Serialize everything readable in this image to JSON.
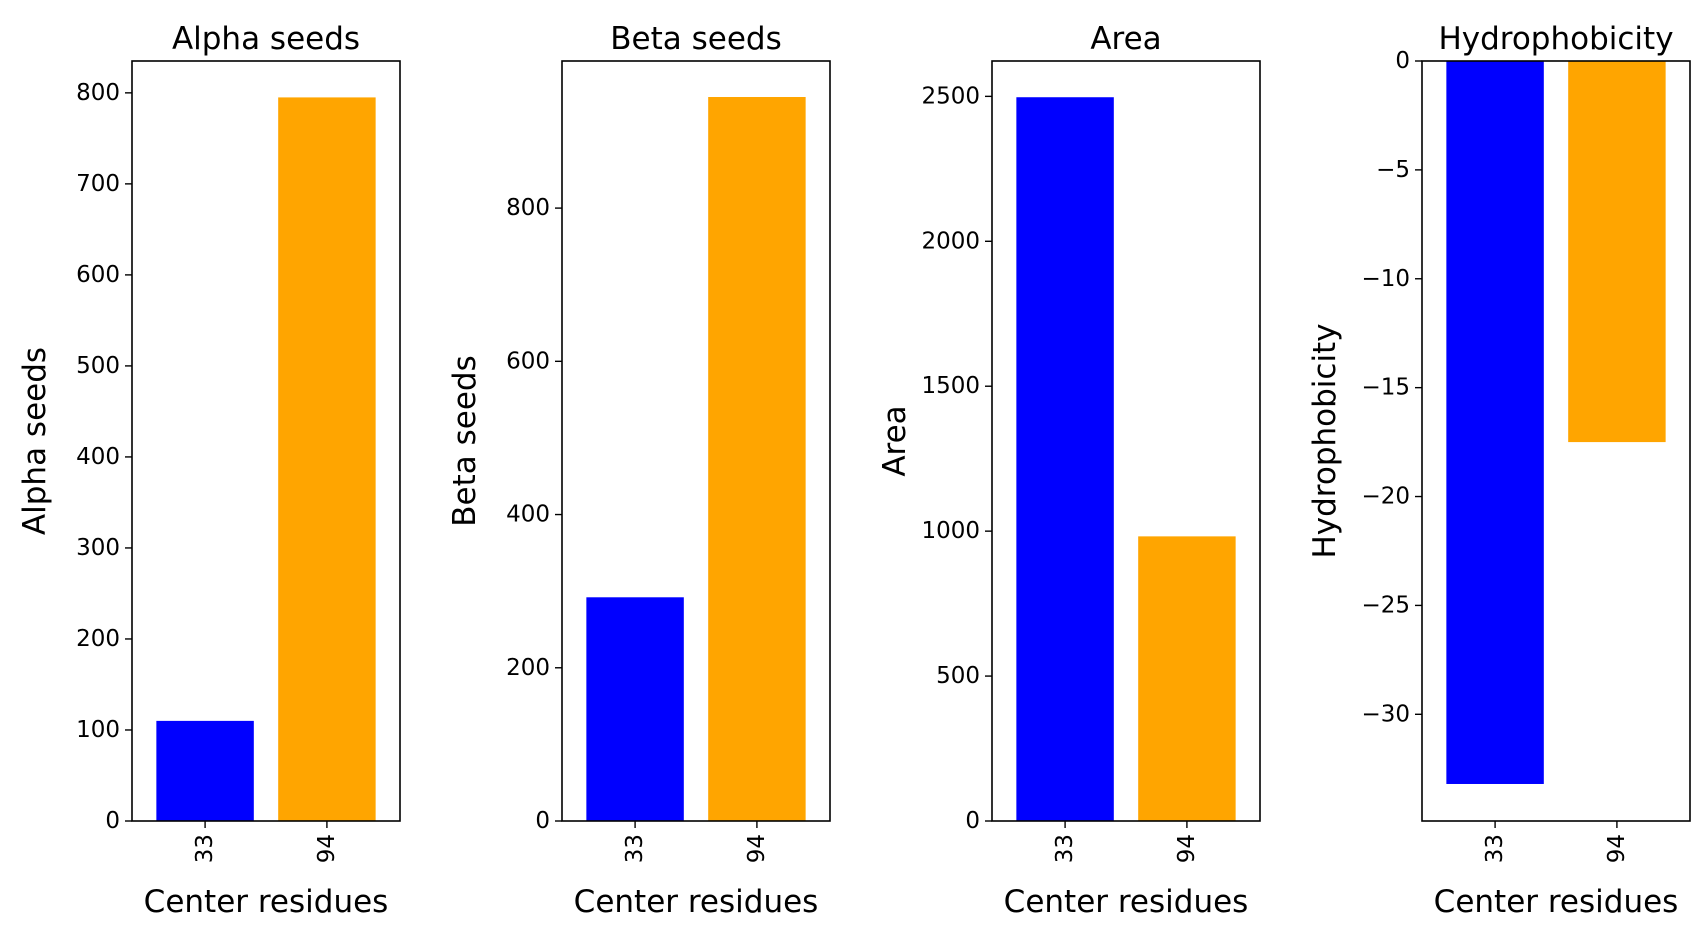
{
  "chart_data": [
    {
      "type": "bar",
      "title": "Alpha seeds",
      "xlabel": "Center residues",
      "ylabel": "Alpha seeds",
      "categories": [
        "33",
        "94"
      ],
      "values": [
        110,
        795
      ],
      "colors": [
        "#0000ff",
        "#ffa500"
      ],
      "ylim": [
        0,
        835
      ],
      "yticks": [
        0,
        100,
        200,
        300,
        400,
        500,
        600,
        700,
        800
      ],
      "ytick_labels": [
        "0",
        "100",
        "200",
        "300",
        "400",
        "500",
        "600",
        "700",
        "800"
      ],
      "grid": false
    },
    {
      "type": "bar",
      "title": "Beta seeds",
      "xlabel": "Center residues",
      "ylabel": "Beta seeds",
      "categories": [
        "33",
        "94"
      ],
      "values": [
        292,
        945
      ],
      "colors": [
        "#0000ff",
        "#ffa500"
      ],
      "ylim": [
        0,
        992
      ],
      "yticks": [
        0,
        200,
        400,
        600,
        800
      ],
      "ytick_labels": [
        "0",
        "200",
        "400",
        "600",
        "800"
      ],
      "grid": false
    },
    {
      "type": "bar",
      "title": "Area",
      "xlabel": "Center residues",
      "ylabel": "Area",
      "categories": [
        "33",
        "94"
      ],
      "values": [
        2497,
        982
      ],
      "colors": [
        "#0000ff",
        "#ffa500"
      ],
      "ylim": [
        0,
        2622
      ],
      "yticks": [
        0,
        500,
        1000,
        1500,
        2000,
        2500
      ],
      "ytick_labels": [
        "0",
        "500",
        "1000",
        "1500",
        "2000",
        "2500"
      ],
      "grid": false
    },
    {
      "type": "bar",
      "title": "Hydrophobicity",
      "xlabel": "Center residues",
      "ylabel": "Hydrophobicity",
      "categories": [
        "33",
        "94"
      ],
      "values": [
        -33.2,
        -17.5
      ],
      "colors": [
        "#0000ff",
        "#ffa500"
      ],
      "ylim": [
        -34.9,
        0
      ],
      "yticks": [
        0,
        -5,
        -10,
        -15,
        -20,
        -25,
        -30
      ],
      "ytick_labels": [
        "0",
        "−5",
        "−10",
        "−15",
        "−20",
        "−25",
        "−30"
      ],
      "grid": false
    }
  ]
}
